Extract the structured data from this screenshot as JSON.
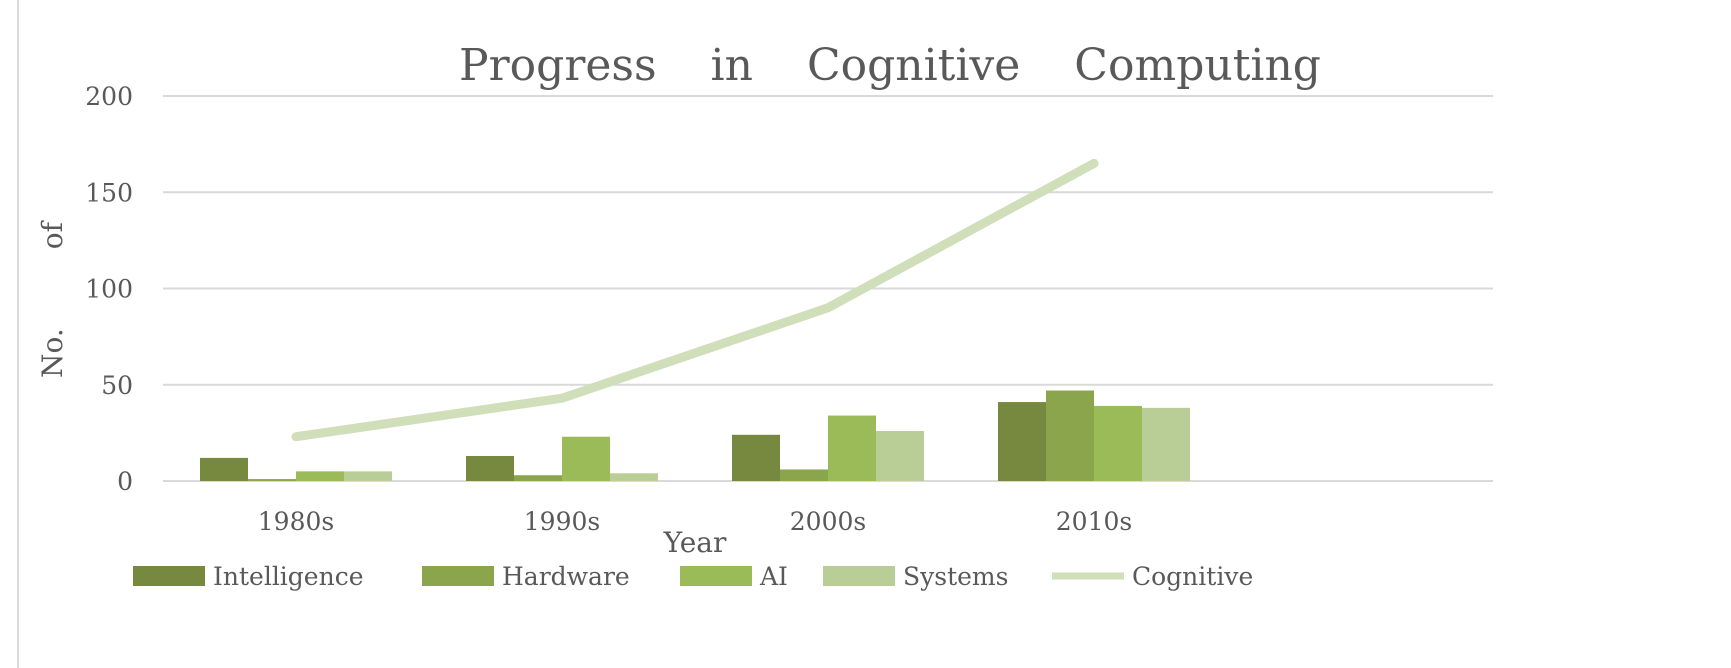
{
  "chart_data": {
    "type": "bar",
    "title": "Progress in Cognitive Computing",
    "xlabel": "Year",
    "ylabel": "No. of",
    "ylim": [
      0,
      200
    ],
    "yticks": [
      0,
      50,
      100,
      150,
      200
    ],
    "grid": true,
    "legend_position": "bottom",
    "categories": [
      "1980s",
      "1990s",
      "2000s",
      "2010s",
      ""
    ],
    "series": [
      {
        "name": "Intelligence",
        "type": "bar",
        "color": "#76893f",
        "values": [
          12,
          13,
          24,
          41,
          null
        ]
      },
      {
        "name": "Hardware",
        "type": "bar",
        "color": "#8aa54b",
        "values": [
          1,
          3,
          6,
          47,
          null
        ]
      },
      {
        "name": "AI",
        "type": "bar",
        "color": "#9bbb59",
        "values": [
          5,
          23,
          34,
          39,
          null
        ]
      },
      {
        "name": "Systems",
        "type": "bar",
        "color": "#b9cd96",
        "values": [
          5,
          4,
          26,
          38,
          null
        ]
      },
      {
        "name": "Cognitive",
        "type": "line",
        "color": "#d0deba",
        "values": [
          23,
          43,
          90,
          165,
          null
        ]
      }
    ]
  }
}
